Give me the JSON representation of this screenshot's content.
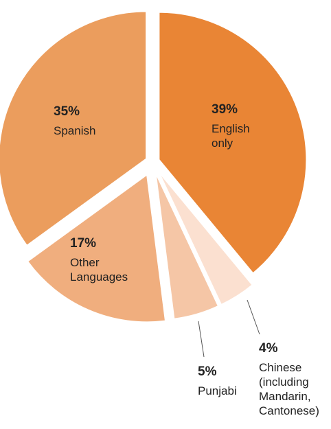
{
  "chart_data": {
    "type": "pie",
    "slices": [
      {
        "name": "English only",
        "value": 39,
        "pct_label": "39%",
        "label_lines": [
          "English",
          "only"
        ],
        "color": "#e98535"
      },
      {
        "name": "Chinese (including Mandarin, Cantonese)",
        "value": 4,
        "pct_label": "4%",
        "label_lines": [
          "Chinese",
          "(including",
          "Mandarin,",
          "Cantonese)"
        ],
        "color": "#fbe0d0"
      },
      {
        "name": "Punjabi",
        "value": 5,
        "pct_label": "5%",
        "label_lines": [
          "Punjabi"
        ],
        "color": "#f5c6a6"
      },
      {
        "name": "Other Languages",
        "value": 17,
        "pct_label": "17%",
        "label_lines": [
          "Other",
          "Languages"
        ],
        "color": "#f0ae7e"
      },
      {
        "name": "Spanish",
        "value": 35,
        "pct_label": "35%",
        "label_lines": [
          "Spanish"
        ],
        "color": "#eb9d5d"
      }
    ],
    "text_color": "#222222",
    "leader_color": "#555555"
  }
}
